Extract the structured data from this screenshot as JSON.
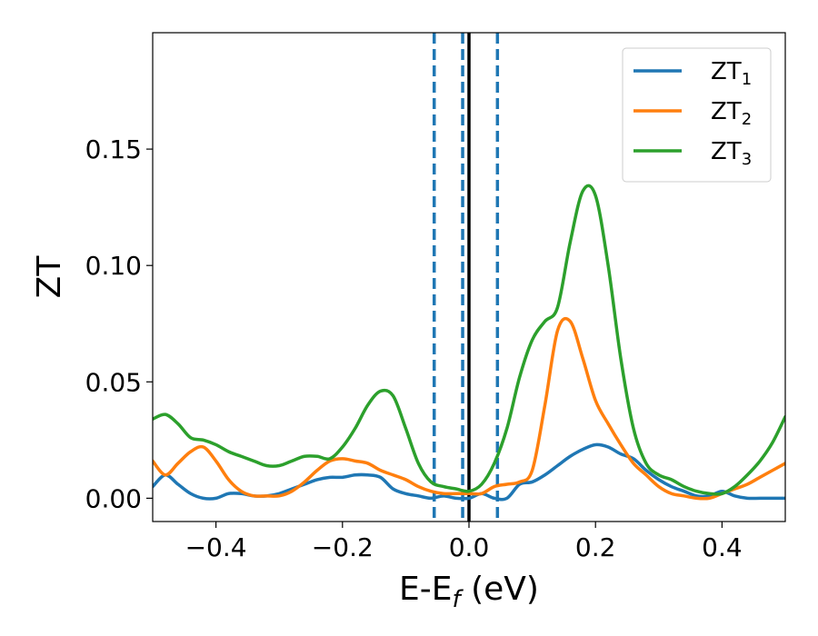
{
  "chart_data": {
    "type": "line",
    "xlabel": {
      "main": "E-E",
      "sub": "f",
      "suffix": " (eV)"
    },
    "ylabel": "ZT",
    "xlim": [
      -0.5,
      0.5
    ],
    "ylim": [
      -0.01,
      0.2
    ],
    "x_ticks": [
      -0.4,
      -0.2,
      0.0,
      0.2,
      0.4
    ],
    "x_tick_labels": [
      "−0.4",
      "−0.2",
      "0.0",
      "0.2",
      "0.4"
    ],
    "y_ticks": [
      0.0,
      0.05,
      0.1,
      0.15
    ],
    "y_tick_labels": [
      "0.00",
      "0.05",
      "0.10",
      "0.15"
    ],
    "grid": false,
    "legend_position": "top-right",
    "vertical_lines": [
      {
        "x": -0.055,
        "style": "dashed",
        "color": "#1f77b4"
      },
      {
        "x": -0.01,
        "style": "dashed",
        "color": "#1f77b4"
      },
      {
        "x": 0.045,
        "style": "dashed",
        "color": "#1f77b4"
      },
      {
        "x": 0.0,
        "style": "solid",
        "color": "#000000"
      }
    ],
    "series": [
      {
        "name": "ZT1",
        "label_main": "ZT",
        "label_sub": "1",
        "color": "#1f77b4",
        "x": [
          -0.5,
          -0.48,
          -0.46,
          -0.44,
          -0.42,
          -0.4,
          -0.38,
          -0.36,
          -0.34,
          -0.32,
          -0.3,
          -0.28,
          -0.26,
          -0.24,
          -0.22,
          -0.2,
          -0.18,
          -0.16,
          -0.14,
          -0.12,
          -0.1,
          -0.08,
          -0.06,
          -0.04,
          -0.02,
          0.0,
          0.02,
          0.04,
          0.06,
          0.08,
          0.1,
          0.12,
          0.14,
          0.16,
          0.18,
          0.2,
          0.22,
          0.24,
          0.26,
          0.28,
          0.3,
          0.32,
          0.34,
          0.36,
          0.38,
          0.4,
          0.42,
          0.44,
          0.46,
          0.48,
          0.5
        ],
        "y": [
          0.005,
          0.01,
          0.006,
          0.002,
          0.0,
          0.0,
          0.002,
          0.002,
          0.001,
          0.001,
          0.002,
          0.004,
          0.006,
          0.008,
          0.009,
          0.009,
          0.01,
          0.01,
          0.009,
          0.004,
          0.002,
          0.001,
          0.0,
          0.001,
          0.0,
          0.0,
          0.002,
          0.0,
          0.0,
          0.006,
          0.007,
          0.01,
          0.014,
          0.018,
          0.021,
          0.023,
          0.022,
          0.019,
          0.017,
          0.012,
          0.008,
          0.005,
          0.003,
          0.001,
          0.001,
          0.003,
          0.001,
          0.0,
          0.0,
          0.0,
          0.0
        ]
      },
      {
        "name": "ZT2",
        "label_main": "ZT",
        "label_sub": "2",
        "color": "#ff7f0e",
        "x": [
          -0.5,
          -0.48,
          -0.46,
          -0.44,
          -0.42,
          -0.4,
          -0.38,
          -0.36,
          -0.34,
          -0.32,
          -0.3,
          -0.28,
          -0.26,
          -0.24,
          -0.22,
          -0.2,
          -0.18,
          -0.16,
          -0.14,
          -0.12,
          -0.1,
          -0.08,
          -0.06,
          -0.04,
          -0.02,
          0.0,
          0.02,
          0.04,
          0.06,
          0.08,
          0.1,
          0.12,
          0.14,
          0.16,
          0.18,
          0.2,
          0.22,
          0.24,
          0.26,
          0.28,
          0.3,
          0.32,
          0.34,
          0.36,
          0.38,
          0.4,
          0.42,
          0.44,
          0.46,
          0.48,
          0.5
        ],
        "y": [
          0.016,
          0.01,
          0.015,
          0.02,
          0.022,
          0.016,
          0.008,
          0.003,
          0.001,
          0.001,
          0.001,
          0.003,
          0.007,
          0.012,
          0.016,
          0.017,
          0.016,
          0.015,
          0.012,
          0.01,
          0.008,
          0.005,
          0.003,
          0.002,
          0.002,
          0.002,
          0.002,
          0.005,
          0.006,
          0.007,
          0.012,
          0.04,
          0.072,
          0.076,
          0.06,
          0.042,
          0.032,
          0.023,
          0.015,
          0.01,
          0.005,
          0.002,
          0.001,
          0.0,
          0.0,
          0.002,
          0.004,
          0.006,
          0.009,
          0.012,
          0.015
        ]
      },
      {
        "name": "ZT3",
        "label_main": "ZT",
        "label_sub": "3",
        "color": "#2ca02c",
        "x": [
          -0.5,
          -0.48,
          -0.46,
          -0.44,
          -0.42,
          -0.4,
          -0.38,
          -0.36,
          -0.34,
          -0.32,
          -0.3,
          -0.28,
          -0.26,
          -0.24,
          -0.22,
          -0.2,
          -0.18,
          -0.16,
          -0.14,
          -0.12,
          -0.1,
          -0.08,
          -0.06,
          -0.04,
          -0.02,
          0.0,
          0.02,
          0.04,
          0.06,
          0.08,
          0.1,
          0.12,
          0.14,
          0.16,
          0.18,
          0.2,
          0.22,
          0.24,
          0.26,
          0.28,
          0.3,
          0.32,
          0.34,
          0.36,
          0.38,
          0.4,
          0.42,
          0.44,
          0.46,
          0.48,
          0.5
        ],
        "y": [
          0.034,
          0.036,
          0.032,
          0.026,
          0.025,
          0.023,
          0.02,
          0.018,
          0.016,
          0.014,
          0.014,
          0.016,
          0.018,
          0.018,
          0.017,
          0.022,
          0.03,
          0.04,
          0.046,
          0.044,
          0.03,
          0.015,
          0.007,
          0.005,
          0.004,
          0.003,
          0.006,
          0.015,
          0.03,
          0.052,
          0.068,
          0.076,
          0.082,
          0.11,
          0.132,
          0.13,
          0.1,
          0.06,
          0.03,
          0.015,
          0.01,
          0.008,
          0.005,
          0.003,
          0.002,
          0.002,
          0.005,
          0.01,
          0.016,
          0.024,
          0.035
        ]
      }
    ]
  }
}
